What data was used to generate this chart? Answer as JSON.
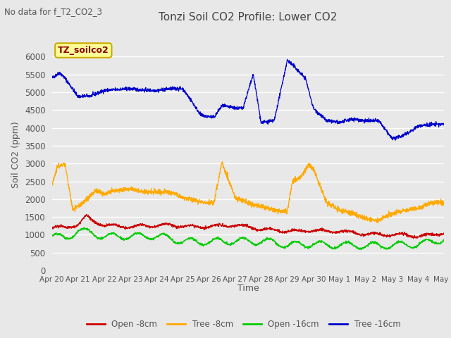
{
  "title": "Tonzi Soil CO2 Profile: Lower CO2",
  "no_data_text": "No data for f_T2_CO2_3",
  "ylabel": "Soil CO2 (ppm)",
  "xlabel": "Time",
  "legend_label": "TZ_soilco2",
  "ylim": [
    0,
    6500
  ],
  "yticks": [
    0,
    500,
    1000,
    1500,
    2000,
    2500,
    3000,
    3500,
    4000,
    4500,
    5000,
    5500,
    6000
  ],
  "bg_color": "#e8e8e8",
  "colors": {
    "open_8cm": "#cc0000",
    "tree_8cm": "#ffaa00",
    "open_16cm": "#00cc00",
    "tree_16cm": "#0000cc"
  },
  "tick_labels": [
    "Apr 20",
    "Apr 21",
    "Apr 22",
    "Apr 23",
    "Apr 24",
    "Apr 25",
    "Apr 26",
    "Apr 27",
    "Apr 28",
    "Apr 29",
    "Apr 30",
    "May 1",
    "May 2",
    "May 3",
    "May 4",
    "May 5"
  ]
}
